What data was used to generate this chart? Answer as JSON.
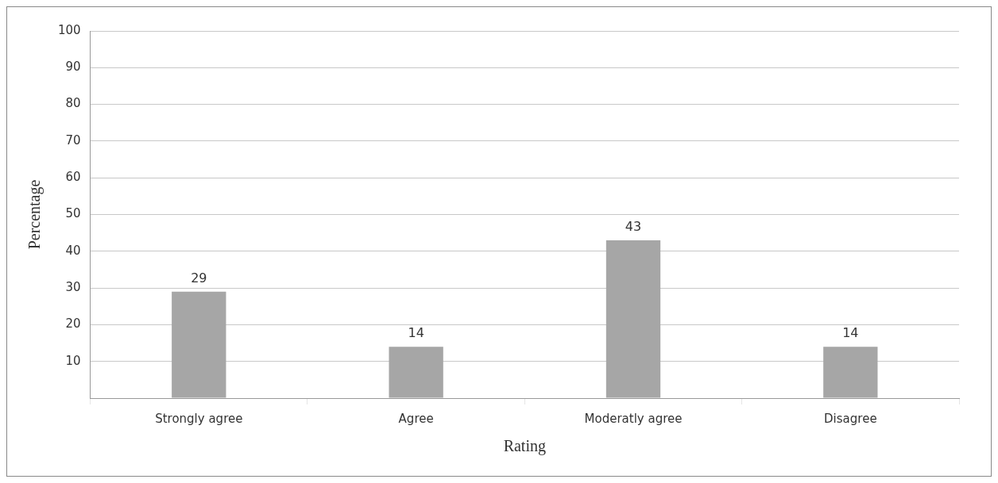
{
  "chart_data": {
    "type": "bar",
    "xlabel": "Rating",
    "ylabel": "Percentage",
    "categories": [
      "Strongly agree",
      "Agree",
      "Moderatly agree",
      "Disagree"
    ],
    "values": [
      29,
      14,
      43,
      14
    ],
    "color": "#a6a6a6",
    "ylim": [
      0,
      100
    ],
    "yticks": [
      {
        "value": 0,
        "label": null
      },
      10,
      20,
      30,
      40,
      50,
      60,
      70,
      80,
      90,
      100
    ],
    "grid": true,
    "data_labels": true,
    "legend": false
  }
}
